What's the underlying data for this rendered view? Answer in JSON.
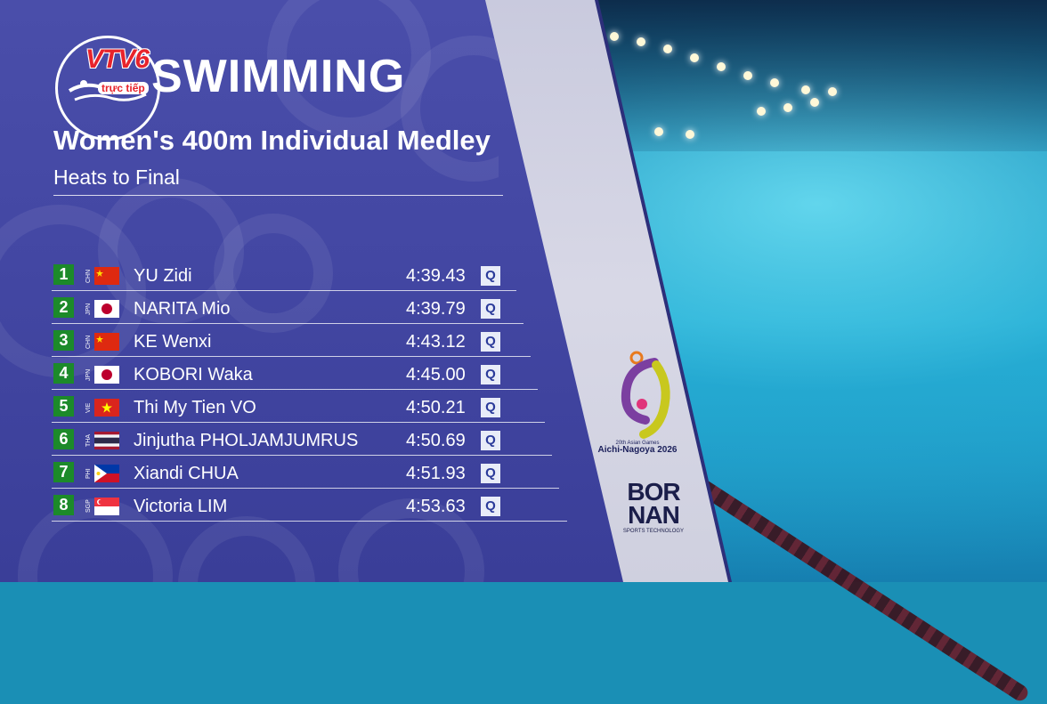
{
  "header": {
    "broadcaster_logo": "VTV6",
    "live_label": "trực tiếp",
    "sport": "SWIMMING",
    "event": "Women's 400m Individual Medley",
    "stage": "Heats to Final"
  },
  "results": [
    {
      "rank": "1",
      "noc": "CHN",
      "flag": "china-flag-icon",
      "name": "YU Zidi",
      "time": "4:39.43",
      "qual": "Q"
    },
    {
      "rank": "2",
      "noc": "JPN",
      "flag": "japan-flag-icon",
      "name": "NARITA Mio",
      "time": "4:39.79",
      "qual": "Q"
    },
    {
      "rank": "3",
      "noc": "CHN",
      "flag": "china-flag-icon",
      "name": "KE Wenxi",
      "time": "4:43.12",
      "qual": "Q"
    },
    {
      "rank": "4",
      "noc": "JPN",
      "flag": "japan-flag-icon",
      "name": "KOBORI Waka",
      "time": "4:45.00",
      "qual": "Q"
    },
    {
      "rank": "5",
      "noc": "VIE",
      "flag": "vietnam-flag-icon",
      "name": "Thi My Tien VO",
      "time": "4:50.21",
      "qual": "Q"
    },
    {
      "rank": "6",
      "noc": "THA",
      "flag": "thailand-flag-icon",
      "name": "Jinjutha PHOLJAMJUMRUS",
      "time": "4:50.69",
      "qual": "Q"
    },
    {
      "rank": "7",
      "noc": "PHI",
      "flag": "philippines-flag-icon",
      "name": "Xiandi CHUA",
      "time": "4:51.93",
      "qual": "Q"
    },
    {
      "rank": "8",
      "noc": "SGP",
      "flag": "singapore-flag-icon",
      "name": "Victoria LIM",
      "time": "4:53.63",
      "qual": "Q"
    }
  ],
  "games_logo": {
    "line1": "20th Asian Games",
    "line2": "Aichi-Nagoya 2026"
  },
  "sponsor": {
    "name_line1": "BOR",
    "name_line2": "NAN",
    "tagline": "SPORTS TECHNOLOGY"
  },
  "colors": {
    "panel": "#4347a3",
    "rank_badge": "#1c8a2a",
    "broadcaster_red": "#e8232b",
    "pool": "#22b3d8"
  }
}
